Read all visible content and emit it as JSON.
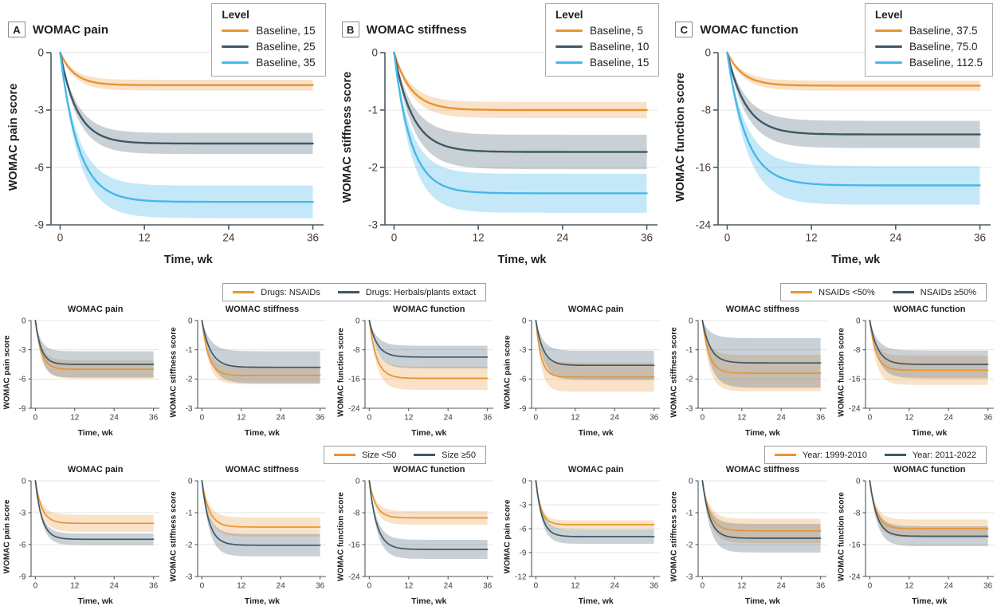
{
  "palette": {
    "orange": "#E89434",
    "dark": "#3E5867",
    "blue": "#45B8E8",
    "orange_band": "rgba(234,150,54,0.28)",
    "dark_band": "rgba(90,113,128,0.32)",
    "blue_band": "rgba(90,190,235,0.35)",
    "axis": "#4C5A64",
    "grid": "#E4E4E4",
    "tick_text": "#3B3B3B"
  },
  "chart_data": {
    "type": "line",
    "x": {
      "label": "Time, wk",
      "min": 0,
      "max": 36,
      "ticks": [
        0,
        12,
        24,
        36
      ]
    },
    "top_panels": [
      {
        "panel_label": "A",
        "title": "WOMAC pain",
        "legend_title": "Level",
        "ylabel": "WOMAC pain score",
        "xlabel": "Time, wk",
        "ylim": [
          -9,
          0
        ],
        "yticks": [
          0,
          -3,
          -6,
          -9
        ],
        "xticks": [
          0,
          12,
          24,
          36
        ],
        "series": [
          {
            "label": "Baseline, 15",
            "color": "orange",
            "start": 0,
            "plateau": -1.7,
            "tau_wk": 2.0,
            "ci_halfwidth": 0.28
          },
          {
            "label": "Baseline, 25",
            "color": "dark",
            "start": 0,
            "plateau": -4.75,
            "tau_wk": 2.4,
            "ci_halfwidth": 0.55
          },
          {
            "label": "Baseline, 35",
            "color": "blue",
            "start": 0,
            "plateau": -7.8,
            "tau_wk": 2.6,
            "ci_halfwidth": 0.85
          }
        ]
      },
      {
        "panel_label": "B",
        "title": "WOMAC stiffness",
        "legend_title": "Level",
        "ylabel": "WOMAC stiffness score",
        "xlabel": "Time, wk",
        "ylim": [
          -3,
          0
        ],
        "yticks": [
          0,
          -1,
          -2,
          -3
        ],
        "xticks": [
          0,
          12,
          24,
          36
        ],
        "series": [
          {
            "label": "Baseline, 5",
            "color": "orange",
            "start": 0,
            "plateau": -1.0,
            "tau_wk": 2.4,
            "ci_halfwidth": 0.14
          },
          {
            "label": "Baseline, 10",
            "color": "dark",
            "start": 0,
            "plateau": -1.73,
            "tau_wk": 2.6,
            "ci_halfwidth": 0.3
          },
          {
            "label": "Baseline, 15",
            "color": "blue",
            "start": 0,
            "plateau": -2.45,
            "tau_wk": 2.4,
            "ci_halfwidth": 0.34
          }
        ]
      },
      {
        "panel_label": "C",
        "title": "WOMAC function",
        "legend_title": "Level",
        "ylabel": "WOMAC function score",
        "xlabel": "Time, wk",
        "ylim": [
          -24,
          0
        ],
        "yticks": [
          0,
          -8,
          -16,
          -24
        ],
        "xticks": [
          0,
          12,
          24,
          36
        ],
        "series": [
          {
            "label": "Baseline, 37.5",
            "color": "orange",
            "start": 0,
            "plateau": -4.6,
            "tau_wk": 2.2,
            "ci_halfwidth": 0.7
          },
          {
            "label": "Baseline, 75.0",
            "color": "dark",
            "start": 0,
            "plateau": -11.4,
            "tau_wk": 2.6,
            "ci_halfwidth": 1.9
          },
          {
            "label": "Baseline, 112.5",
            "color": "blue",
            "start": 0,
            "plateau": -18.5,
            "tau_wk": 2.7,
            "ci_halfwidth": 2.7
          }
        ]
      }
    ],
    "subgroup_rows": [
      {
        "groups": [
          {
            "legend": [
              {
                "label": "Drugs: NSAIDs",
                "color": "orange"
              },
              {
                "label": "Drugs: Herbals/plants extact",
                "color": "dark"
              }
            ],
            "panels": [
              {
                "title": "WOMAC pain",
                "ylabel": "WOMAC pain score",
                "xlabel": "Time, wk",
                "ylim": [
                  -9,
                  0
                ],
                "yticks": [
                  0,
                  -3,
                  -6,
                  -9
                ],
                "xticks": [
                  0,
                  12,
                  24,
                  36
                ],
                "series": [
                  {
                    "label": "Drugs: NSAIDs",
                    "color": "orange",
                    "start": 0,
                    "plateau": -5.0,
                    "tau_wk": 1.8,
                    "ci_halfwidth": 0.95
                  },
                  {
                    "label": "Drugs: Herbals/plants extact",
                    "color": "dark",
                    "start": 0,
                    "plateau": -4.5,
                    "tau_wk": 1.8,
                    "ci_halfwidth": 1.35
                  }
                ]
              },
              {
                "title": "WOMAC stiffness",
                "ylabel": "WOMAC stiffness score",
                "xlabel": "Time, wk",
                "ylim": [
                  -3,
                  0
                ],
                "yticks": [
                  0,
                  -1,
                  -2,
                  -3
                ],
                "xticks": [
                  0,
                  12,
                  24,
                  36
                ],
                "series": [
                  {
                    "label": "Drugs: NSAIDs",
                    "color": "orange",
                    "start": 0,
                    "plateau": -1.88,
                    "tau_wk": 2.0,
                    "ci_halfwidth": 0.3
                  },
                  {
                    "label": "Drugs: Herbals/plants extact",
                    "color": "dark",
                    "start": 0,
                    "plateau": -1.6,
                    "tau_wk": 2.6,
                    "ci_halfwidth": 0.55
                  }
                ]
              },
              {
                "title": "WOMAC function",
                "ylabel": "WOMAC function score",
                "xlabel": "Time, wk",
                "ylim": [
                  -24,
                  0
                ],
                "yticks": [
                  0,
                  -8,
                  -16,
                  -24
                ],
                "xticks": [
                  0,
                  12,
                  24,
                  36
                ],
                "series": [
                  {
                    "label": "Drugs: NSAIDs",
                    "color": "orange",
                    "start": 0,
                    "plateau": -15.8,
                    "tau_wk": 2.2,
                    "ci_halfwidth": 3.2
                  },
                  {
                    "label": "Drugs: Herbals/plants extact",
                    "color": "dark",
                    "start": 0,
                    "plateau": -10.0,
                    "tau_wk": 2.4,
                    "ci_halfwidth": 3.1
                  }
                ]
              }
            ]
          },
          {
            "legend": [
              {
                "label": "NSAIDs <50%",
                "color": "orange"
              },
              {
                "label": "NSAIDs ≥50%",
                "color": "dark"
              }
            ],
            "panels": [
              {
                "title": "WOMAC pain",
                "ylabel": "WOMAC pain score",
                "xlabel": "Time, wk",
                "ylim": [
                  -9,
                  0
                ],
                "yticks": [
                  0,
                  -3,
                  -6,
                  -9
                ],
                "xticks": [
                  0,
                  12,
                  24,
                  36
                ],
                "series": [
                  {
                    "label": "NSAIDs <50%",
                    "color": "orange",
                    "start": 0,
                    "plateau": -5.8,
                    "tau_wk": 1.6,
                    "ci_halfwidth": 1.5
                  },
                  {
                    "label": "NSAIDs ≥50%",
                    "color": "dark",
                    "start": 0,
                    "plateau": -4.6,
                    "tau_wk": 2.2,
                    "ci_halfwidth": 1.5
                  }
                ]
              },
              {
                "title": "WOMAC stiffness",
                "ylabel": "WOMAC stiffness score",
                "xlabel": "Time, wk",
                "ylim": [
                  -3,
                  0
                ],
                "yticks": [
                  0,
                  -1,
                  -2,
                  -3
                ],
                "xticks": [
                  0,
                  12,
                  24,
                  36
                ],
                "series": [
                  {
                    "label": "NSAIDs <50%",
                    "color": "orange",
                    "start": 0,
                    "plateau": -1.8,
                    "tau_wk": 2.0,
                    "ci_halfwidth": 0.62
                  },
                  {
                    "label": "NSAIDs ≥50%",
                    "color": "dark",
                    "start": 0,
                    "plateau": -1.45,
                    "tau_wk": 2.4,
                    "ci_halfwidth": 0.85
                  }
                ]
              },
              {
                "title": "WOMAC function",
                "ylabel": "WOMAC function score",
                "xlabel": "Time, wk",
                "ylim": [
                  -24,
                  0
                ],
                "yticks": [
                  0,
                  -8,
                  -16,
                  -24
                ],
                "xticks": [
                  0,
                  12,
                  24,
                  36
                ],
                "series": [
                  {
                    "label": "NSAIDs <50%",
                    "color": "orange",
                    "start": 0,
                    "plateau": -13.6,
                    "tau_wk": 1.9,
                    "ci_halfwidth": 4.0
                  },
                  {
                    "label": "NSAIDs ≥50%",
                    "color": "dark",
                    "start": 0,
                    "plateau": -12.0,
                    "tau_wk": 2.4,
                    "ci_halfwidth": 3.8
                  }
                ]
              }
            ]
          }
        ]
      },
      {
        "groups": [
          {
            "legend": [
              {
                "label": "Size <50",
                "color": "orange"
              },
              {
                "label": "Size ≥50",
                "color": "dark"
              }
            ],
            "panels": [
              {
                "title": "WOMAC pain",
                "ylabel": "WOMAC pain score",
                "xlabel": "Time, wk",
                "ylim": [
                  -9,
                  0
                ],
                "yticks": [
                  0,
                  -3,
                  -6,
                  -9
                ],
                "xticks": [
                  0,
                  12,
                  24,
                  36
                ],
                "series": [
                  {
                    "label": "Size <50",
                    "color": "orange",
                    "start": 0,
                    "plateau": -4.0,
                    "tau_wk": 2.0,
                    "ci_halfwidth": 0.8
                  },
                  {
                    "label": "Size ≥50",
                    "color": "dark",
                    "start": 0,
                    "plateau": -5.5,
                    "tau_wk": 2.0,
                    "ci_halfwidth": 0.55
                  }
                ]
              },
              {
                "title": "WOMAC stiffness",
                "ylabel": "WOMAC stiffness score",
                "xlabel": "Time, wk",
                "ylim": [
                  -3,
                  0
                ],
                "yticks": [
                  0,
                  -1,
                  -2,
                  -3
                ],
                "xticks": [
                  0,
                  12,
                  24,
                  36
                ],
                "series": [
                  {
                    "label": "Size <50",
                    "color": "orange",
                    "start": 0,
                    "plateau": -1.45,
                    "tau_wk": 2.2,
                    "ci_halfwidth": 0.3
                  },
                  {
                    "label": "Size ≥50",
                    "color": "dark",
                    "start": 0,
                    "plateau": -2.02,
                    "tau_wk": 2.2,
                    "ci_halfwidth": 0.35
                  }
                ]
              },
              {
                "title": "WOMAC function",
                "ylabel": "WOMAC function score",
                "xlabel": "Time, wk",
                "ylim": [
                  -24,
                  0
                ],
                "yticks": [
                  0,
                  -8,
                  -16,
                  -24
                ],
                "xticks": [
                  0,
                  12,
                  24,
                  36
                ],
                "series": [
                  {
                    "label": "Size <50",
                    "color": "orange",
                    "start": 0,
                    "plateau": -9.3,
                    "tau_wk": 2.0,
                    "ci_halfwidth": 1.7
                  },
                  {
                    "label": "Size ≥50",
                    "color": "dark",
                    "start": 0,
                    "plateau": -17.2,
                    "tau_wk": 2.3,
                    "ci_halfwidth": 2.4
                  }
                ]
              }
            ]
          },
          {
            "legend": [
              {
                "label": "Year: 1999-2010",
                "color": "orange"
              },
              {
                "label": "Year: 2011-2022",
                "color": "dark"
              }
            ],
            "panels": [
              {
                "title": "WOMAC pain",
                "ylabel": "WOMAC pain score",
                "xlabel": "Time, wk",
                "ylim": [
                  -12,
                  0
                ],
                "yticks": [
                  0,
                  -3,
                  -6,
                  -9,
                  -12
                ],
                "xticks": [
                  0,
                  12,
                  24,
                  36
                ],
                "series": [
                  {
                    "label": "Year: 1999-2010",
                    "color": "orange",
                    "start": 0,
                    "plateau": -5.5,
                    "tau_wk": 1.6,
                    "ci_halfwidth": 0.55
                  },
                  {
                    "label": "Year: 2011-2022",
                    "color": "dark",
                    "start": 0,
                    "plateau": -7.0,
                    "tau_wk": 1.9,
                    "ci_halfwidth": 0.9
                  }
                ]
              },
              {
                "title": "WOMAC stiffness",
                "ylabel": "WOMAC stiffness score",
                "xlabel": "Time, wk",
                "ylim": [
                  -3,
                  0
                ],
                "yticks": [
                  0,
                  -1,
                  -2,
                  -3
                ],
                "xticks": [
                  0,
                  12,
                  24,
                  36
                ],
                "series": [
                  {
                    "label": "Year: 1999-2010",
                    "color": "orange",
                    "start": 0,
                    "plateau": -1.57,
                    "tau_wk": 2.2,
                    "ci_halfwidth": 0.38
                  },
                  {
                    "label": "Year: 2011-2022",
                    "color": "dark",
                    "start": 0,
                    "plateau": -1.8,
                    "tau_wk": 2.2,
                    "ci_halfwidth": 0.45
                  }
                ]
              },
              {
                "title": "WOMAC function",
                "ylabel": "WOMAC function score",
                "xlabel": "Time, wk",
                "ylim": [
                  -24,
                  0
                ],
                "yticks": [
                  0,
                  -8,
                  -16,
                  -24
                ],
                "xticks": [
                  0,
                  12,
                  24,
                  36
                ],
                "series": [
                  {
                    "label": "Year: 1999-2010",
                    "color": "orange",
                    "start": 0,
                    "plateau": -12.0,
                    "tau_wk": 2.0,
                    "ci_halfwidth": 2.3
                  },
                  {
                    "label": "Year: 2011-2022",
                    "color": "dark",
                    "start": 0,
                    "plateau": -13.9,
                    "tau_wk": 2.2,
                    "ci_halfwidth": 2.5
                  }
                ]
              }
            ]
          }
        ]
      }
    ]
  }
}
